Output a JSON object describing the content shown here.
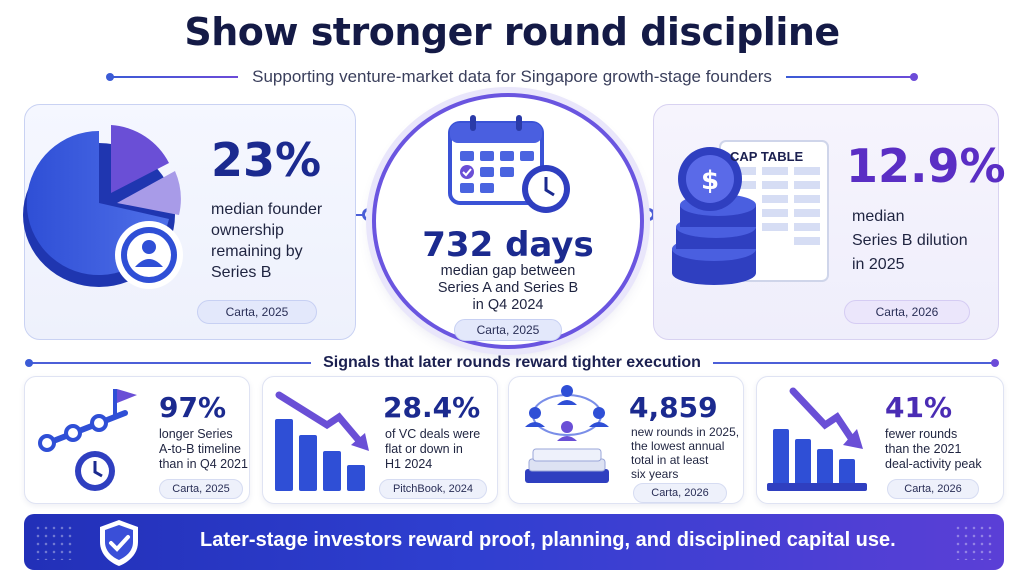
{
  "header": {
    "title": "Show stronger round discipline",
    "subtitle": "Supporting venture-market data for Singapore growth-stage founders"
  },
  "top_stats": {
    "left": {
      "value": "23%",
      "desc_lines": [
        "median founder",
        "ownership",
        "remaining by",
        "Series B"
      ],
      "source": "Carta, 2025",
      "icon": "pie-chart-user-icon"
    },
    "center": {
      "value": "732 days",
      "desc_lines": [
        "median gap between",
        "Series A and Series B",
        "in Q4 2024"
      ],
      "source": "Carta, 2025",
      "icon": "calendar-clock-icon"
    },
    "right": {
      "value": "12.9%",
      "desc_lines": [
        "median",
        "Series B dilution",
        "in 2025"
      ],
      "source": "Carta, 2026",
      "icon_label": "CAP TABLE",
      "icon": "cap-table-coins-icon"
    }
  },
  "signals": {
    "heading": "Signals that later rounds reward tighter execution",
    "cards": [
      {
        "value": "97%",
        "desc_lines": [
          "longer Series",
          "A-to-B timeline",
          "than in Q4 2021"
        ],
        "source": "Carta, 2025",
        "icon": "timeline-flag-clock-icon"
      },
      {
        "value": "28.4%",
        "desc_lines": [
          "of VC deals were",
          "flat or down in",
          "H1 2024"
        ],
        "source": "PitchBook, 2024",
        "icon": "bars-down-arrow-icon"
      },
      {
        "value": "4,859",
        "desc_lines": [
          "new rounds in 2025,",
          "the lowest annual",
          "total in at least",
          "six years"
        ],
        "source": "Carta, 2026",
        "icon": "network-stack-icon"
      },
      {
        "value": "41%",
        "desc_lines": [
          "fewer rounds",
          "than the 2021",
          "deal-activity peak"
        ],
        "source": "Carta, 2026",
        "icon": "bars-decline-icon"
      }
    ]
  },
  "banner": {
    "text": "Later-stage investors reward proof, planning, and disciplined capital use.",
    "icon": "shield-check-icon"
  },
  "colors": {
    "navy": "#141a46",
    "blue": "#1b2a8f",
    "purple": "#5a2ec4",
    "banner_start": "#2230b8",
    "banner_end": "#5b3fd6"
  }
}
